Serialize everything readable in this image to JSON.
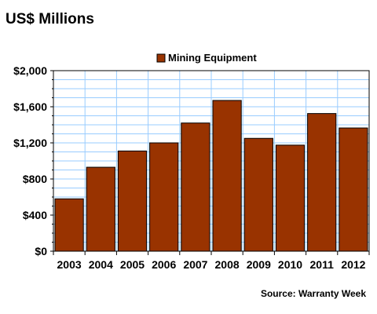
{
  "chart_data": {
    "type": "bar",
    "title": "US$ Millions",
    "source": "Source: Warranty Week",
    "categories": [
      "2003",
      "2004",
      "2005",
      "2006",
      "2007",
      "2008",
      "2009",
      "2010",
      "2011",
      "2012"
    ],
    "series": [
      {
        "name": "Mining Equipment",
        "values": [
          580,
          930,
          1110,
          1200,
          1420,
          1670,
          1250,
          1175,
          1525,
          1365
        ]
      }
    ],
    "ylim": [
      0,
      2000
    ],
    "yticks": [
      0,
      400,
      800,
      1200,
      1600,
      2000
    ],
    "ytick_labels": [
      "$0",
      "$400",
      "$800",
      "$1,200",
      "$1,600",
      "$2,000"
    ],
    "xlabel": "",
    "ylabel": "",
    "grid": true,
    "legend_position": "top-center",
    "colors": {
      "bar": "#993300",
      "bar_edge": "#000000",
      "grid": "#99ccff",
      "frame": "#000000"
    }
  }
}
